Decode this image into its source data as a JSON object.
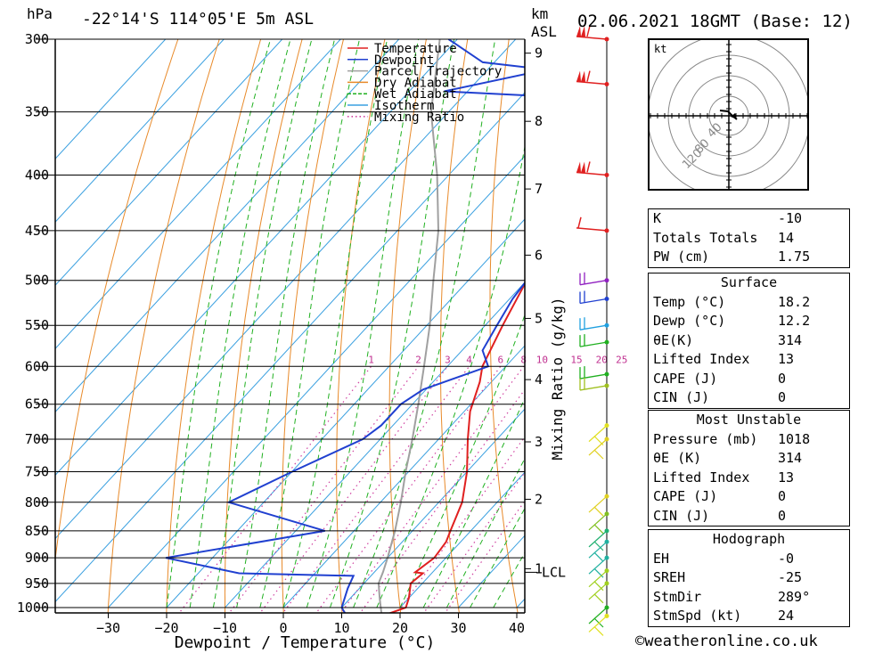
{
  "header": {
    "unit_hpa": "hPa",
    "location": "-22°14'S  114°05'E  5m  ASL",
    "unit_km": "km",
    "unit_asl": "ASL",
    "datetime": "02.06.2021  18GMT  (Base: 12)"
  },
  "chart_data": {
    "type": "skew-t",
    "xlabel": "Dewpoint / Temperature (°C)",
    "right_axis_label": "Mixing Ratio (g/kg)",
    "x_ticks": [
      -30,
      -20,
      -10,
      0,
      10,
      20,
      30,
      40
    ],
    "pressure_ticks": [
      300,
      350,
      400,
      450,
      500,
      550,
      600,
      650,
      700,
      750,
      800,
      850,
      900,
      950,
      1000
    ],
    "height_km_ticks": [
      {
        "km": "1",
        "p": 921
      },
      {
        "km": "2",
        "p": 795
      },
      {
        "km": "3",
        "p": 704
      },
      {
        "km": "4",
        "p": 617
      },
      {
        "km": "5",
        "p": 542
      },
      {
        "km": "6",
        "p": 474
      },
      {
        "km": "7",
        "p": 412
      },
      {
        "km": "8",
        "p": 357
      },
      {
        "km": "9",
        "p": 309
      }
    ],
    "lcl_label": "LCL",
    "lcl_pressure": 928,
    "mixing_ratio_labels": [
      "1",
      "2",
      "3",
      "4",
      "6",
      "8",
      "10",
      "15",
      "20",
      "25"
    ],
    "mixing_ratio_label_pressure": 600,
    "temperature": {
      "name": "Temperature",
      "color": "#e02020",
      "points": [
        [
          1018,
          18.2
        ],
        [
          1000,
          21
        ],
        [
          980,
          20
        ],
        [
          950,
          18
        ],
        [
          930,
          18.5
        ],
        [
          928,
          17
        ],
        [
          900,
          18
        ],
        [
          870,
          17.5
        ],
        [
          850,
          16.5
        ],
        [
          800,
          14
        ],
        [
          750,
          10
        ],
        [
          700,
          5
        ],
        [
          660,
          1
        ],
        [
          620,
          -2
        ],
        [
          600,
          -4
        ],
        [
          550,
          -7
        ],
        [
          500,
          -10
        ],
        [
          450,
          -15
        ],
        [
          400,
          -20.5
        ],
        [
          380,
          -23.5
        ],
        [
          350,
          -28.5
        ],
        [
          330,
          -34
        ],
        [
          300,
          -39.5
        ]
      ]
    },
    "dewpoint": {
      "name": "Dewpoint",
      "color": "#2040d0",
      "points": [
        [
          1018,
          12.2
        ],
        [
          1000,
          10
        ],
        [
          960,
          8
        ],
        [
          935,
          7
        ],
        [
          930,
          -13
        ],
        [
          900,
          -28
        ],
        [
          850,
          -5
        ],
        [
          800,
          -26
        ],
        [
          750,
          -20
        ],
        [
          700,
          -13
        ],
        [
          680,
          -12
        ],
        [
          650,
          -12
        ],
        [
          630,
          -10.5
        ],
        [
          600,
          -3
        ],
        [
          580,
          -6.5
        ],
        [
          550,
          -8
        ],
        [
          520,
          -9.5
        ],
        [
          500,
          -10
        ],
        [
          450,
          -15
        ],
        [
          400,
          -20.5
        ],
        [
          380,
          -26
        ],
        [
          350,
          -29
        ],
        [
          340,
          -29
        ],
        [
          335,
          -54
        ],
        [
          320,
          -40
        ],
        [
          315,
          -52
        ],
        [
          300,
          -61.5
        ]
      ]
    },
    "parcel": {
      "name": "Parcel Trajectory",
      "color": "#a0a0a0",
      "points": [
        [
          1018,
          18.2
        ],
        [
          980,
          15
        ],
        [
          950,
          12.5
        ],
        [
          928,
          11.5
        ],
        [
          900,
          10
        ],
        [
          850,
          7
        ],
        [
          800,
          3.5
        ],
        [
          750,
          -0.5
        ],
        [
          700,
          -4.5
        ],
        [
          650,
          -9
        ],
        [
          600,
          -14
        ],
        [
          550,
          -19.5
        ],
        [
          500,
          -26
        ],
        [
          450,
          -33
        ],
        [
          400,
          -42
        ],
        [
          350,
          -53
        ],
        [
          300,
          -63
        ]
      ]
    },
    "legend": [
      {
        "label": "Temperature",
        "color": "#e02020",
        "style": "solid"
      },
      {
        "label": "Dewpoint",
        "color": "#2040d0",
        "style": "solid"
      },
      {
        "label": "Parcel Trajectory",
        "color": "#a0a0a0",
        "style": "solid"
      },
      {
        "label": "Dry Adiabat",
        "color": "#e88a2a",
        "style": "solid"
      },
      {
        "label": "Wet Adiabat",
        "color": "#20b020",
        "style": "dashed"
      },
      {
        "label": "Isotherm",
        "color": "#3aa0e0",
        "style": "solid"
      },
      {
        "label": "Mixing Ratio",
        "color": "#d040a0",
        "style": "dotted"
      }
    ],
    "wind_barbs": [
      {
        "p": 300,
        "color": "#e02020",
        "pennants": 2
      },
      {
        "p": 330,
        "color": "#e02020",
        "pennants": 2
      },
      {
        "p": 400,
        "color": "#e02020",
        "pennants": 2
      },
      {
        "p": 450,
        "color": "#e02020",
        "pennants": 0
      },
      {
        "p": 500,
        "color": "#9020c0",
        "pennants": 0
      },
      {
        "p": 520,
        "color": "#2040d0",
        "pennants": 0
      },
      {
        "p": 550,
        "color": "#20a0e0",
        "pennants": 0
      },
      {
        "p": 570,
        "color": "#20b020",
        "pennants": 0
      },
      {
        "p": 610,
        "color": "#20b020",
        "pennants": 0
      },
      {
        "p": 625,
        "color": "#a0c020",
        "pennants": 0
      },
      {
        "p": 680,
        "color": "#e0e020",
        "pennants": 0
      },
      {
        "p": 700,
        "color": "#e0d020",
        "pennants": 0
      },
      {
        "p": 790,
        "color": "#e0d020",
        "pennants": 0
      },
      {
        "p": 820,
        "color": "#80c020",
        "pennants": 0
      },
      {
        "p": 850,
        "color": "#20b070",
        "pennants": 0
      },
      {
        "p": 870,
        "color": "#20b0a0",
        "pennants": 0
      },
      {
        "p": 900,
        "color": "#20b0a0",
        "pennants": 0
      },
      {
        "p": 925,
        "color": "#a0d020",
        "pennants": 0
      },
      {
        "p": 950,
        "color": "#a0d020",
        "pennants": 0
      },
      {
        "p": 1000,
        "color": "#20b020",
        "pennants": 0
      },
      {
        "p": 1018,
        "color": "#e0e020",
        "pennants": 0
      }
    ]
  },
  "hodograph": {
    "unit": "kt",
    "ring_labels": [
      "40",
      "80",
      "120"
    ]
  },
  "indices": {
    "rows": [
      {
        "label": "K",
        "value": "-10"
      },
      {
        "label": "Totals Totals",
        "value": "14"
      },
      {
        "label": "PW (cm)",
        "value": "1.75"
      }
    ]
  },
  "surface": {
    "title": "Surface",
    "rows": [
      {
        "label": "Temp (°C)",
        "value": "18.2"
      },
      {
        "label": "Dewp (°C)",
        "value": "12.2"
      },
      {
        "label": "θE(K)",
        "value": "314"
      },
      {
        "label": "Lifted Index",
        "value": "13"
      },
      {
        "label": "CAPE (J)",
        "value": "0"
      },
      {
        "label": "CIN (J)",
        "value": "0"
      }
    ]
  },
  "most_unstable": {
    "title": "Most Unstable",
    "rows": [
      {
        "label": "Pressure (mb)",
        "value": "1018"
      },
      {
        "label": "θE (K)",
        "value": "314"
      },
      {
        "label": "Lifted Index",
        "value": "13"
      },
      {
        "label": "CAPE (J)",
        "value": "0"
      },
      {
        "label": "CIN (J)",
        "value": "0"
      }
    ]
  },
  "hodograph_stats": {
    "title": "Hodograph",
    "rows": [
      {
        "label": "EH",
        "value": "-0"
      },
      {
        "label": "SREH",
        "value": "-25"
      },
      {
        "label": "StmDir",
        "value": "289°"
      },
      {
        "label": "StmSpd (kt)",
        "value": "24"
      }
    ]
  },
  "footer": "©weatheronline.co.uk"
}
